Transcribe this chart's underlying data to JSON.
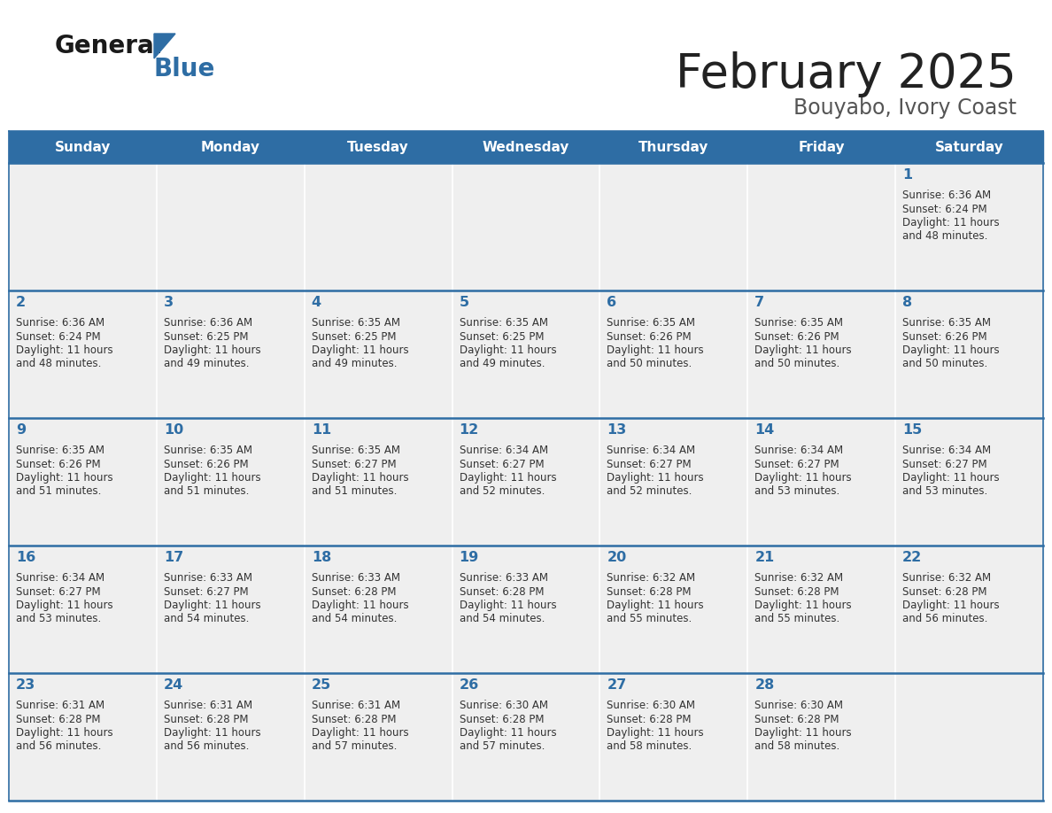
{
  "title": "February 2025",
  "subtitle": "Bouyabo, Ivory Coast",
  "header_bg": "#2E6DA4",
  "header_text_color": "#FFFFFF",
  "cell_bg_light": "#EFEFEF",
  "day_names": [
    "Sunday",
    "Monday",
    "Tuesday",
    "Wednesday",
    "Thursday",
    "Friday",
    "Saturday"
  ],
  "title_color": "#222222",
  "subtitle_color": "#555555",
  "day_number_color": "#2E6DA4",
  "cell_text_color": "#333333",
  "grid_line_color": "#2E6DA4",
  "weeks": [
    [
      {
        "day": null,
        "sunrise": null,
        "sunset": null,
        "daylight_line1": null,
        "daylight_line2": null
      },
      {
        "day": null,
        "sunrise": null,
        "sunset": null,
        "daylight_line1": null,
        "daylight_line2": null
      },
      {
        "day": null,
        "sunrise": null,
        "sunset": null,
        "daylight_line1": null,
        "daylight_line2": null
      },
      {
        "day": null,
        "sunrise": null,
        "sunset": null,
        "daylight_line1": null,
        "daylight_line2": null
      },
      {
        "day": null,
        "sunrise": null,
        "sunset": null,
        "daylight_line1": null,
        "daylight_line2": null
      },
      {
        "day": null,
        "sunrise": null,
        "sunset": null,
        "daylight_line1": null,
        "daylight_line2": null
      },
      {
        "day": 1,
        "sunrise": "6:36 AM",
        "sunset": "6:24 PM",
        "daylight_line1": "Daylight: 11 hours",
        "daylight_line2": "and 48 minutes."
      }
    ],
    [
      {
        "day": 2,
        "sunrise": "6:36 AM",
        "sunset": "6:24 PM",
        "daylight_line1": "Daylight: 11 hours",
        "daylight_line2": "and 48 minutes."
      },
      {
        "day": 3,
        "sunrise": "6:36 AM",
        "sunset": "6:25 PM",
        "daylight_line1": "Daylight: 11 hours",
        "daylight_line2": "and 49 minutes."
      },
      {
        "day": 4,
        "sunrise": "6:35 AM",
        "sunset": "6:25 PM",
        "daylight_line1": "Daylight: 11 hours",
        "daylight_line2": "and 49 minutes."
      },
      {
        "day": 5,
        "sunrise": "6:35 AM",
        "sunset": "6:25 PM",
        "daylight_line1": "Daylight: 11 hours",
        "daylight_line2": "and 49 minutes."
      },
      {
        "day": 6,
        "sunrise": "6:35 AM",
        "sunset": "6:26 PM",
        "daylight_line1": "Daylight: 11 hours",
        "daylight_line2": "and 50 minutes."
      },
      {
        "day": 7,
        "sunrise": "6:35 AM",
        "sunset": "6:26 PM",
        "daylight_line1": "Daylight: 11 hours",
        "daylight_line2": "and 50 minutes."
      },
      {
        "day": 8,
        "sunrise": "6:35 AM",
        "sunset": "6:26 PM",
        "daylight_line1": "Daylight: 11 hours",
        "daylight_line2": "and 50 minutes."
      }
    ],
    [
      {
        "day": 9,
        "sunrise": "6:35 AM",
        "sunset": "6:26 PM",
        "daylight_line1": "Daylight: 11 hours",
        "daylight_line2": "and 51 minutes."
      },
      {
        "day": 10,
        "sunrise": "6:35 AM",
        "sunset": "6:26 PM",
        "daylight_line1": "Daylight: 11 hours",
        "daylight_line2": "and 51 minutes."
      },
      {
        "day": 11,
        "sunrise": "6:35 AM",
        "sunset": "6:27 PM",
        "daylight_line1": "Daylight: 11 hours",
        "daylight_line2": "and 51 minutes."
      },
      {
        "day": 12,
        "sunrise": "6:34 AM",
        "sunset": "6:27 PM",
        "daylight_line1": "Daylight: 11 hours",
        "daylight_line2": "and 52 minutes."
      },
      {
        "day": 13,
        "sunrise": "6:34 AM",
        "sunset": "6:27 PM",
        "daylight_line1": "Daylight: 11 hours",
        "daylight_line2": "and 52 minutes."
      },
      {
        "day": 14,
        "sunrise": "6:34 AM",
        "sunset": "6:27 PM",
        "daylight_line1": "Daylight: 11 hours",
        "daylight_line2": "and 53 minutes."
      },
      {
        "day": 15,
        "sunrise": "6:34 AM",
        "sunset": "6:27 PM",
        "daylight_line1": "Daylight: 11 hours",
        "daylight_line2": "and 53 minutes."
      }
    ],
    [
      {
        "day": 16,
        "sunrise": "6:34 AM",
        "sunset": "6:27 PM",
        "daylight_line1": "Daylight: 11 hours",
        "daylight_line2": "and 53 minutes."
      },
      {
        "day": 17,
        "sunrise": "6:33 AM",
        "sunset": "6:27 PM",
        "daylight_line1": "Daylight: 11 hours",
        "daylight_line2": "and 54 minutes."
      },
      {
        "day": 18,
        "sunrise": "6:33 AM",
        "sunset": "6:28 PM",
        "daylight_line1": "Daylight: 11 hours",
        "daylight_line2": "and 54 minutes."
      },
      {
        "day": 19,
        "sunrise": "6:33 AM",
        "sunset": "6:28 PM",
        "daylight_line1": "Daylight: 11 hours",
        "daylight_line2": "and 54 minutes."
      },
      {
        "day": 20,
        "sunrise": "6:32 AM",
        "sunset": "6:28 PM",
        "daylight_line1": "Daylight: 11 hours",
        "daylight_line2": "and 55 minutes."
      },
      {
        "day": 21,
        "sunrise": "6:32 AM",
        "sunset": "6:28 PM",
        "daylight_line1": "Daylight: 11 hours",
        "daylight_line2": "and 55 minutes."
      },
      {
        "day": 22,
        "sunrise": "6:32 AM",
        "sunset": "6:28 PM",
        "daylight_line1": "Daylight: 11 hours",
        "daylight_line2": "and 56 minutes."
      }
    ],
    [
      {
        "day": 23,
        "sunrise": "6:31 AM",
        "sunset": "6:28 PM",
        "daylight_line1": "Daylight: 11 hours",
        "daylight_line2": "and 56 minutes."
      },
      {
        "day": 24,
        "sunrise": "6:31 AM",
        "sunset": "6:28 PM",
        "daylight_line1": "Daylight: 11 hours",
        "daylight_line2": "and 56 minutes."
      },
      {
        "day": 25,
        "sunrise": "6:31 AM",
        "sunset": "6:28 PM",
        "daylight_line1": "Daylight: 11 hours",
        "daylight_line2": "and 57 minutes."
      },
      {
        "day": 26,
        "sunrise": "6:30 AM",
        "sunset": "6:28 PM",
        "daylight_line1": "Daylight: 11 hours",
        "daylight_line2": "and 57 minutes."
      },
      {
        "day": 27,
        "sunrise": "6:30 AM",
        "sunset": "6:28 PM",
        "daylight_line1": "Daylight: 11 hours",
        "daylight_line2": "and 58 minutes."
      },
      {
        "day": 28,
        "sunrise": "6:30 AM",
        "sunset": "6:28 PM",
        "daylight_line1": "Daylight: 11 hours",
        "daylight_line2": "and 58 minutes."
      },
      {
        "day": null,
        "sunrise": null,
        "sunset": null,
        "daylight_line1": null,
        "daylight_line2": null
      }
    ]
  ]
}
